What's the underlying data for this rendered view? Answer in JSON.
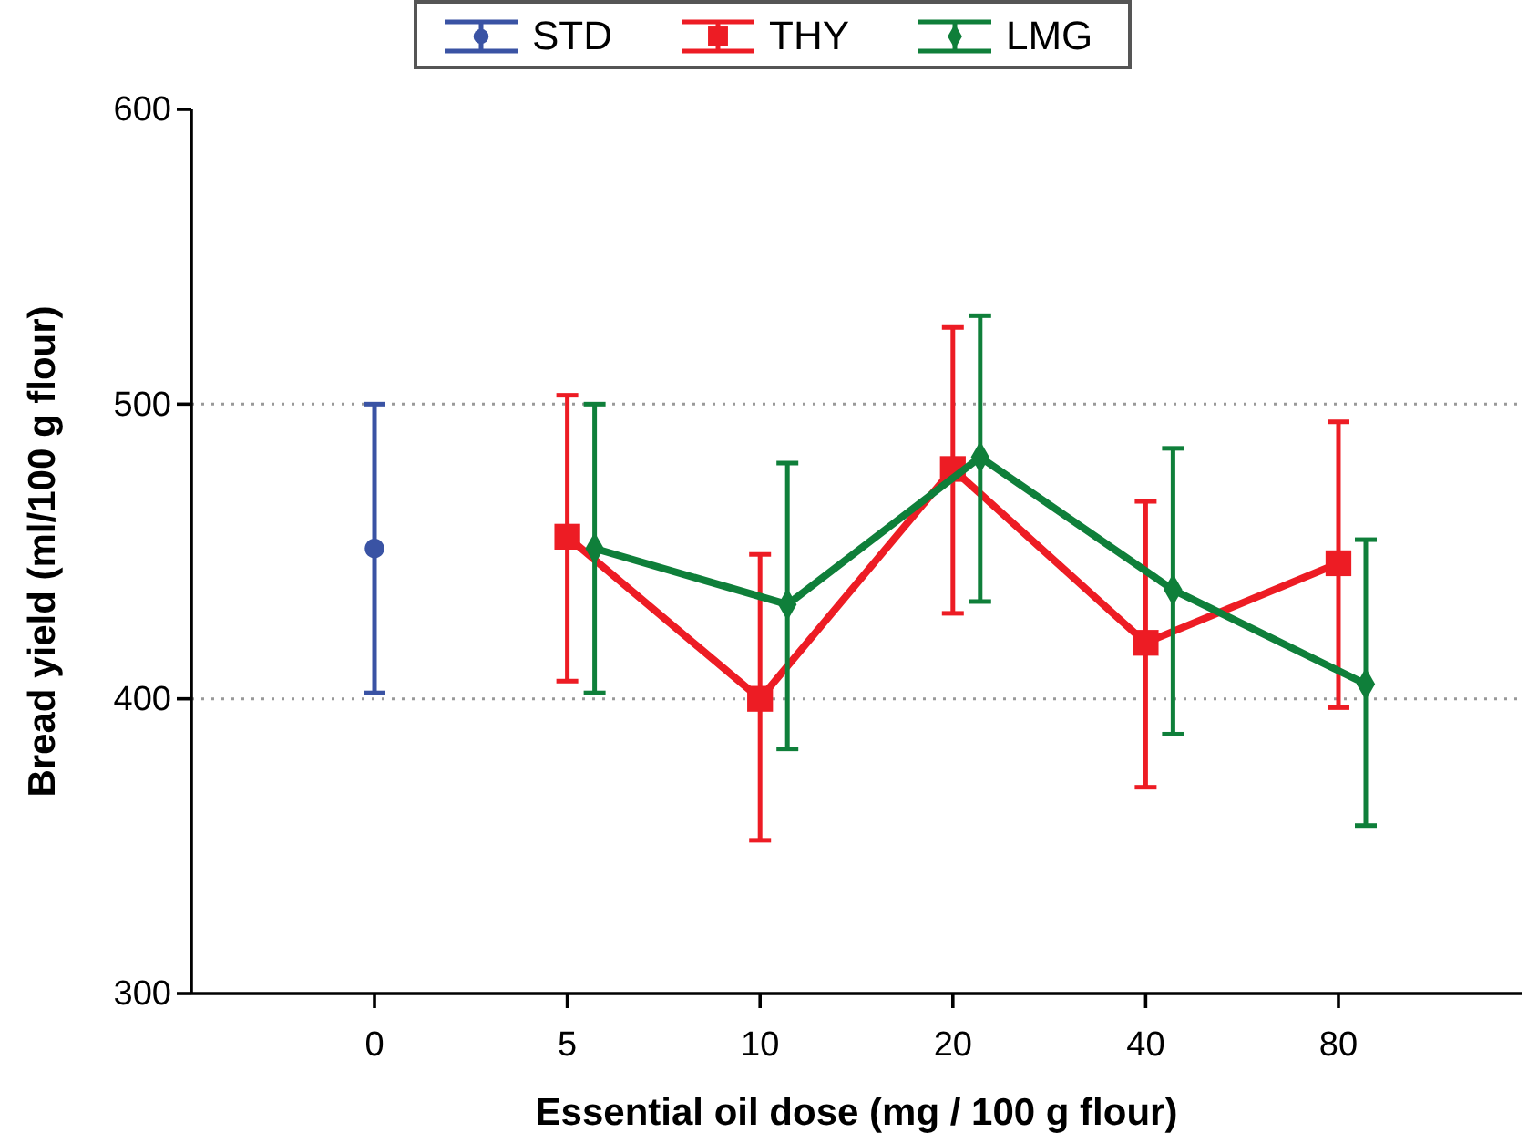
{
  "chart_data": {
    "type": "line",
    "xlabel": "Essential oil dose (mg / 100 g flour)",
    "ylabel": "Bread yield (ml/100 g flour)",
    "categories": [
      "0",
      "5",
      "10",
      "20",
      "40",
      "80"
    ],
    "ylim": [
      300,
      600
    ],
    "yticks": [
      300,
      400,
      500,
      600
    ],
    "grid": "y",
    "legend": "top",
    "line_style": "solid",
    "series": [
      {
        "name": "STD",
        "color": "#3a53a4",
        "marker": "circle",
        "values": [
          451,
          null,
          null,
          null,
          null,
          null
        ],
        "errors": [
          [
            402,
            500
          ],
          null,
          null,
          null,
          null,
          null
        ]
      },
      {
        "name": "THY",
        "color": "#ed1c24",
        "marker": "square",
        "values": [
          null,
          455,
          400,
          478,
          419,
          446
        ],
        "errors": [
          null,
          [
            406,
            503
          ],
          [
            352,
            449
          ],
          [
            429,
            526
          ],
          [
            370,
            467
          ],
          [
            397,
            494
          ]
        ]
      },
      {
        "name": "LMG",
        "color": "#0f7f3a",
        "marker": "diamond",
        "values": [
          null,
          451,
          432,
          482,
          437,
          405
        ],
        "errors": [
          null,
          [
            402,
            500
          ],
          [
            383,
            480
          ],
          [
            433,
            530
          ],
          [
            388,
            485
          ],
          [
            357,
            454
          ]
        ]
      }
    ]
  }
}
